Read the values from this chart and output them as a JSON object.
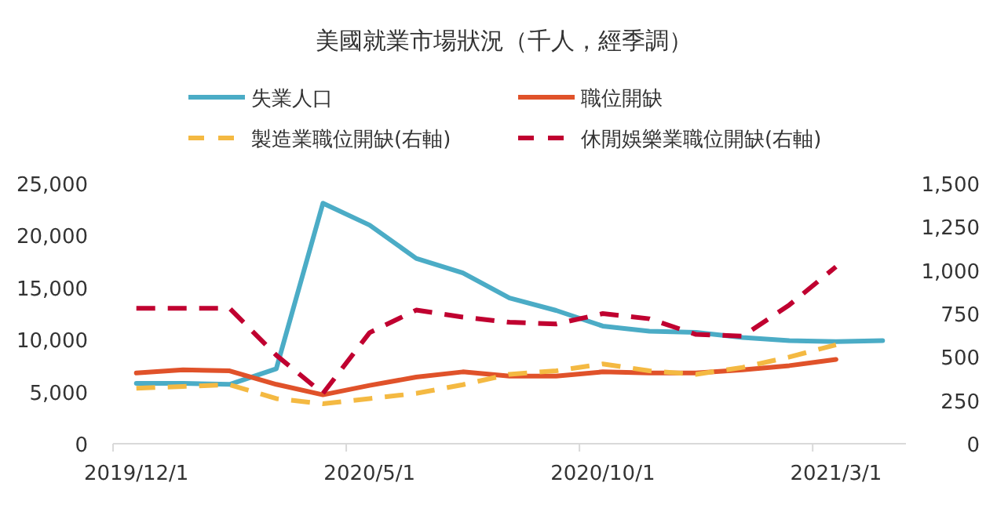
{
  "chart_data": {
    "type": "line",
    "title": "美國就業市場狀況（千人，經季調）",
    "x": [
      "2019-12",
      "2020-01",
      "2020-02",
      "2020-03",
      "2020-04",
      "2020-05",
      "2020-06",
      "2020-07",
      "2020-08",
      "2020-09",
      "2020-10",
      "2020-11",
      "2020-12",
      "2021-01",
      "2021-02",
      "2021-03",
      "2021-04"
    ],
    "xlim": [
      "2019-11-16",
      "2021-04-16"
    ],
    "xticks": [
      {
        "value": "2019-12",
        "label": "2019/12/1"
      },
      {
        "value": "2020-05",
        "label": "2020/5/1"
      },
      {
        "value": "2020-10",
        "label": "2020/10/1"
      },
      {
        "value": "2021-03",
        "label": "2021/3/1"
      }
    ],
    "ylim": [
      0,
      25000
    ],
    "yticks": [
      {
        "value": 0,
        "label": "0"
      },
      {
        "value": 5000,
        "label": "5,000"
      },
      {
        "value": 10000,
        "label": "10,000"
      },
      {
        "value": 15000,
        "label": "15,000"
      },
      {
        "value": 20000,
        "label": "20,000"
      },
      {
        "value": 25000,
        "label": "25,000"
      }
    ],
    "y2lim": [
      0,
      1500
    ],
    "y2ticks": [
      {
        "value": 0,
        "label": "0"
      },
      {
        "value": 250,
        "label": "250"
      },
      {
        "value": 500,
        "label": "500"
      },
      {
        "value": 750,
        "label": "750"
      },
      {
        "value": 1000,
        "label": "1,000"
      },
      {
        "value": 1250,
        "label": "1,250"
      },
      {
        "value": 1500,
        "label": "1,500"
      }
    ],
    "legend": "top",
    "line_style": "solid",
    "series": [
      {
        "name": "失業人口",
        "color": "#4bacc6",
        "values": [
          5800,
          5800,
          5700,
          7200,
          23100,
          21000,
          17800,
          16400,
          14000,
          12800,
          11300,
          10800,
          10700,
          10200,
          9900,
          9800,
          9900
        ]
      },
      {
        "name": "職位開缺",
        "color": "#e0522a",
        "values": [
          6800,
          7100,
          7000,
          5700,
          4700,
          5600,
          6400,
          6900,
          6500,
          6500,
          6900,
          6800,
          6800,
          7100,
          7500,
          8100,
          null
        ]
      },
      {
        "name": "製造業職位開缺(右軸)",
        "color": "#f4b942",
        "axis": "y2",
        "line_style": "dashed",
        "values": [
          320,
          330,
          340,
          260,
          230,
          260,
          290,
          340,
          400,
          420,
          460,
          420,
          400,
          440,
          500,
          570,
          null
        ]
      },
      {
        "name": "休閒娛樂業職位開缺(右軸)",
        "color": "#c00030",
        "axis": "y2",
        "line_style": "dashed",
        "values": [
          780,
          780,
          780,
          510,
          290,
          640,
          770,
          730,
          700,
          690,
          750,
          720,
          630,
          620,
          800,
          1020,
          null
        ]
      }
    ]
  }
}
